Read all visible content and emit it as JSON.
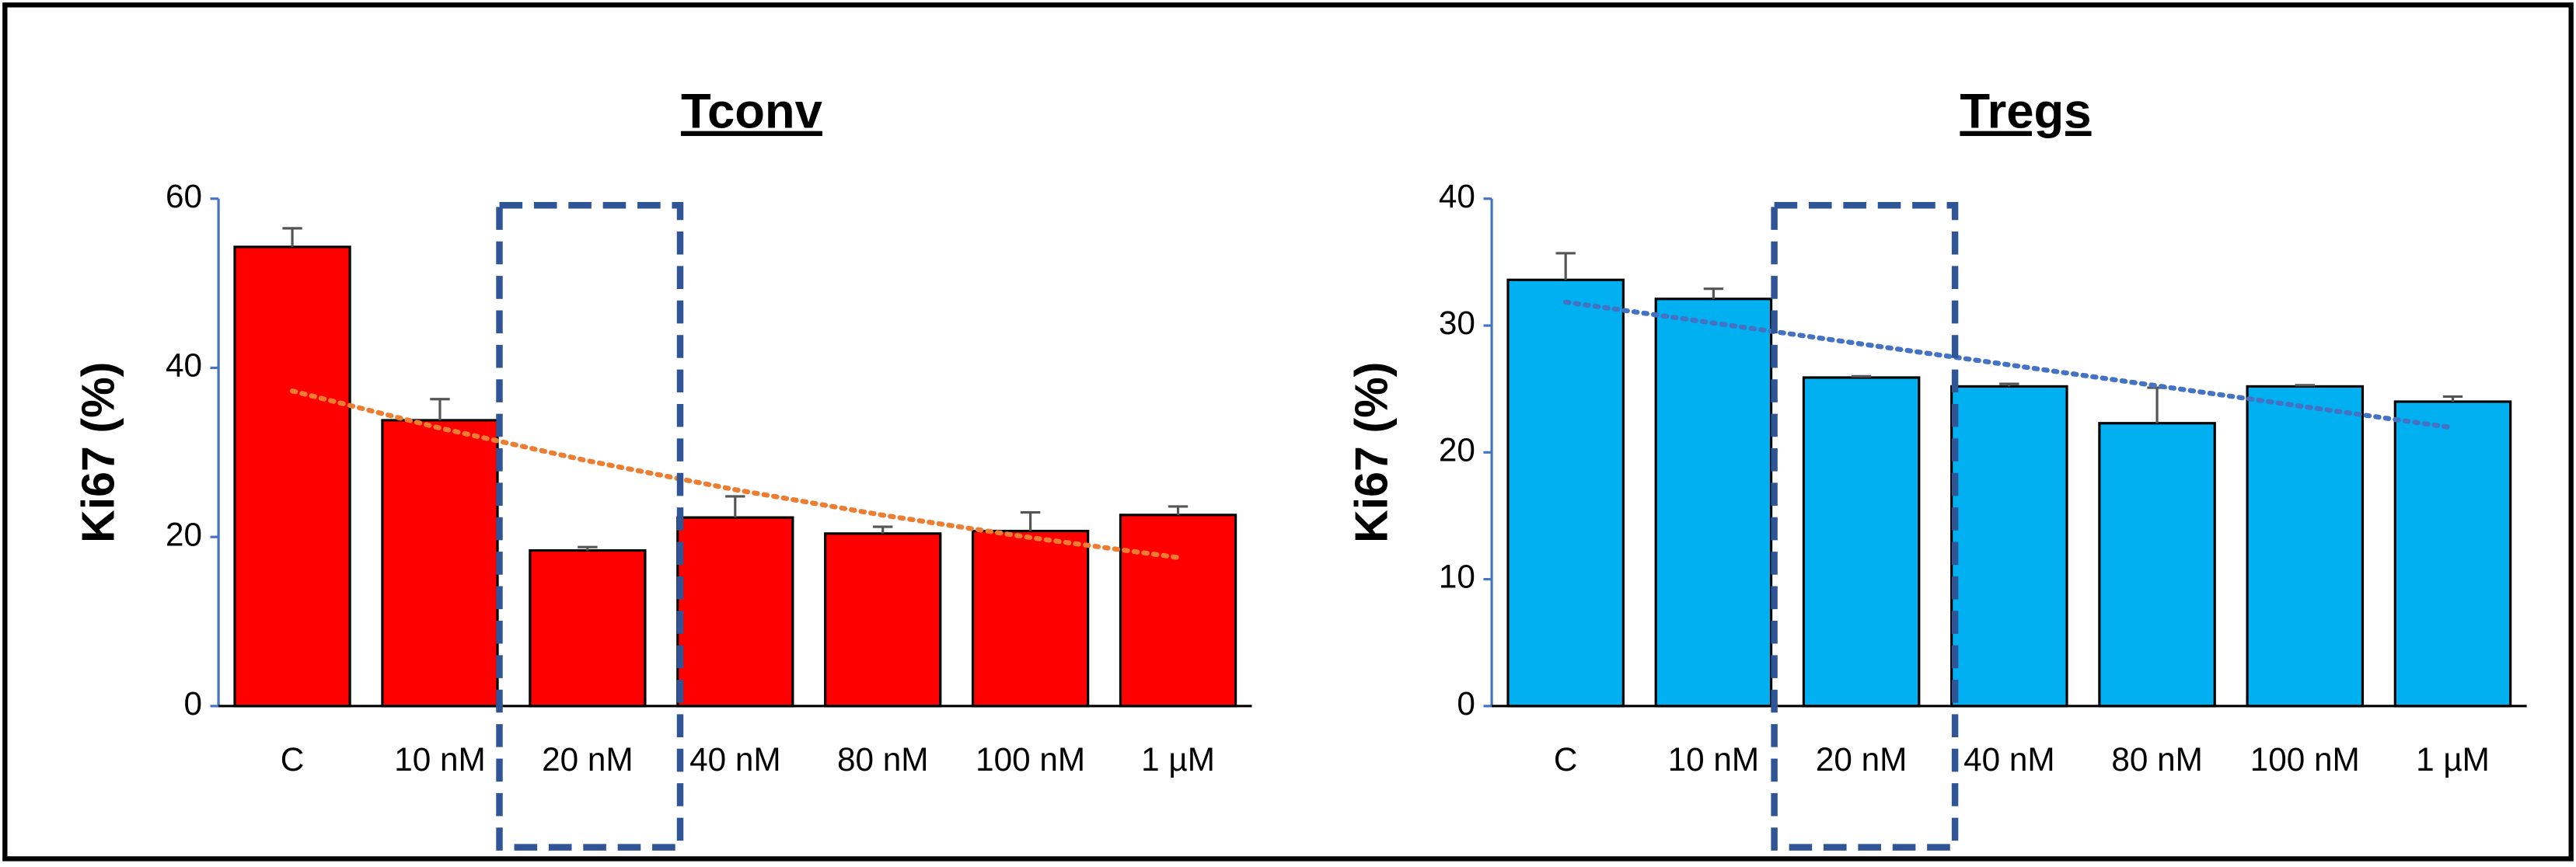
{
  "chart_data": [
    {
      "type": "bar",
      "title": "Tconv",
      "y_label": "Ki67 (%)",
      "categories": [
        "C",
        "10 nM",
        "20 nM",
        "40 nM",
        "80 nM",
        "100 nM",
        "1 µM"
      ],
      "values": [
        54.3,
        33.8,
        18.4,
        22.3,
        20.4,
        20.7,
        22.6
      ],
      "errors": [
        2.2,
        2.5,
        0.4,
        2.5,
        0.8,
        2.2,
        1.0
      ],
      "color": "#ff0000",
      "trendline": "exponential",
      "trendline_color": "#ed7d31",
      "ylim": [
        0,
        60
      ],
      "yticks": [
        0,
        20,
        40,
        60
      ]
    },
    {
      "type": "bar",
      "title": "Tregs",
      "y_label": "Ki67 (%)",
      "categories": [
        "C",
        "10 nM",
        "20 nM",
        "40 nM",
        "80 nM",
        "100 nM",
        "1 µM"
      ],
      "values": [
        33.6,
        32.1,
        25.9,
        25.2,
        22.3,
        25.2,
        24.0
      ],
      "errors": [
        2.1,
        0.8,
        0.1,
        0.2,
        2.8,
        0.1,
        0.4
      ],
      "color": "#00b0f0",
      "trendline": "linear",
      "trendline_color": "#4472c4",
      "ylim": [
        0,
        40
      ],
      "yticks": [
        0,
        10,
        20,
        30,
        40
      ]
    }
  ]
}
